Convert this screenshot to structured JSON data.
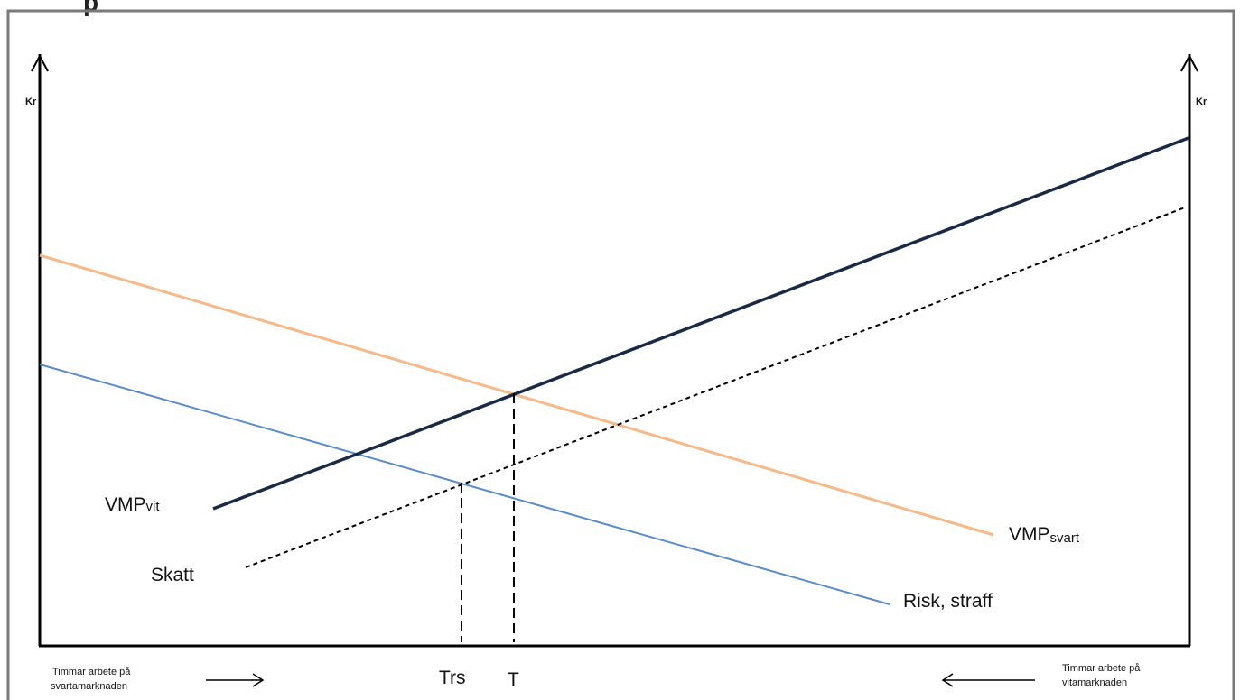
{
  "top_fragment": "p",
  "axes": {
    "left_unit": "Kr",
    "right_unit": "Kr"
  },
  "curves": {
    "vmp_vit": {
      "main": "VMP",
      "sub": "vit",
      "color": "#1b2a44"
    },
    "vmp_svart": {
      "main": "VMP",
      "sub": "svart",
      "color": "#f5b98a"
    },
    "skatt": {
      "label": "Skatt",
      "color": "#000000"
    },
    "risk": {
      "label": "Risk, straff",
      "color": "#5b8cc8"
    }
  },
  "ticks": {
    "trs": "Trs",
    "t": "T"
  },
  "x_captions": {
    "left_line1": "Timmar arbete på",
    "left_line2": "svartamarknaden",
    "right_line1": "Timmar arbete på",
    "right_line2": "vitamarknaden"
  }
}
